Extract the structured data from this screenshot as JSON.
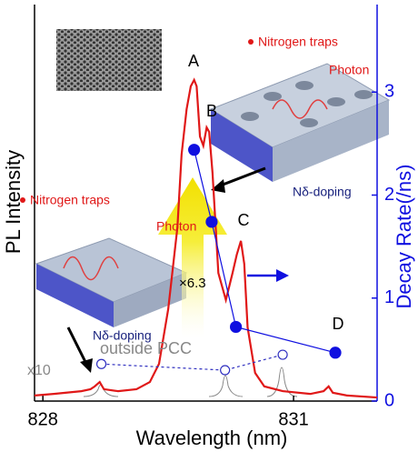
{
  "chart_data": {
    "type": "line",
    "xlabel": "Wavelength (nm)",
    "ylabel": "PL Intensity",
    "y2label": "Decay Rate(/ns)",
    "xlim": [
      827.9,
      832.0
    ],
    "xticks": [
      828,
      831
    ],
    "ylim": [
      0,
      1
    ],
    "y2lim": [
      0,
      3.85
    ],
    "y2ticks": [
      0,
      1,
      2,
      3
    ],
    "y2color": "#1010e0",
    "series": [
      {
        "color": "#e01818",
        "x": [
          827.9,
          828.13,
          828.46,
          828.57,
          828.62,
          828.68,
          828.73,
          828.9,
          829.12,
          829.28,
          829.39,
          829.5,
          829.61,
          829.66,
          829.72,
          829.77,
          829.81,
          829.84,
          829.88,
          829.92,
          829.96,
          829.99,
          830.03,
          830.1,
          830.19,
          830.27,
          830.32,
          830.37,
          830.41,
          830.45,
          830.54,
          830.65,
          830.87,
          831.2,
          831.36,
          831.42,
          831.47,
          831.64,
          832.0
        ],
        "values": [
          0.014,
          0.018,
          0.025,
          0.03,
          0.037,
          0.048,
          0.03,
          0.025,
          0.03,
          0.048,
          0.094,
          0.232,
          0.438,
          0.622,
          0.736,
          0.794,
          0.81,
          0.794,
          0.667,
          0.644,
          0.69,
          0.679,
          0.576,
          0.323,
          0.255,
          0.323,
          0.369,
          0.404,
          0.346,
          0.186,
          0.071,
          0.037,
          0.025,
          0.018,
          0.025,
          0.037,
          0.021,
          0.014,
          0.009
        ]
      },
      {
        "color": "#1010e0",
        "axis": "y2",
        "marker": "filled",
        "x": [
          829.81,
          830.02,
          830.31,
          831.5
        ],
        "values": [
          2.44,
          1.74,
          0.72,
          0.47
        ]
      },
      {
        "color": "#3030c0",
        "axis": "y2",
        "marker": "open",
        "dashed": true,
        "x": [
          828.7,
          830.18,
          830.87
        ],
        "values": [
          0.36,
          0.3,
          0.45
        ]
      }
    ],
    "annotations": [
      "A",
      "B",
      "C",
      "D",
      "Nitrogen traps",
      "Photon",
      "Nδ-doping",
      "Nitrogen traps",
      "Photon",
      "Nδ-doping",
      "×6.3",
      "outside PCC",
      "x10"
    ]
  }
}
